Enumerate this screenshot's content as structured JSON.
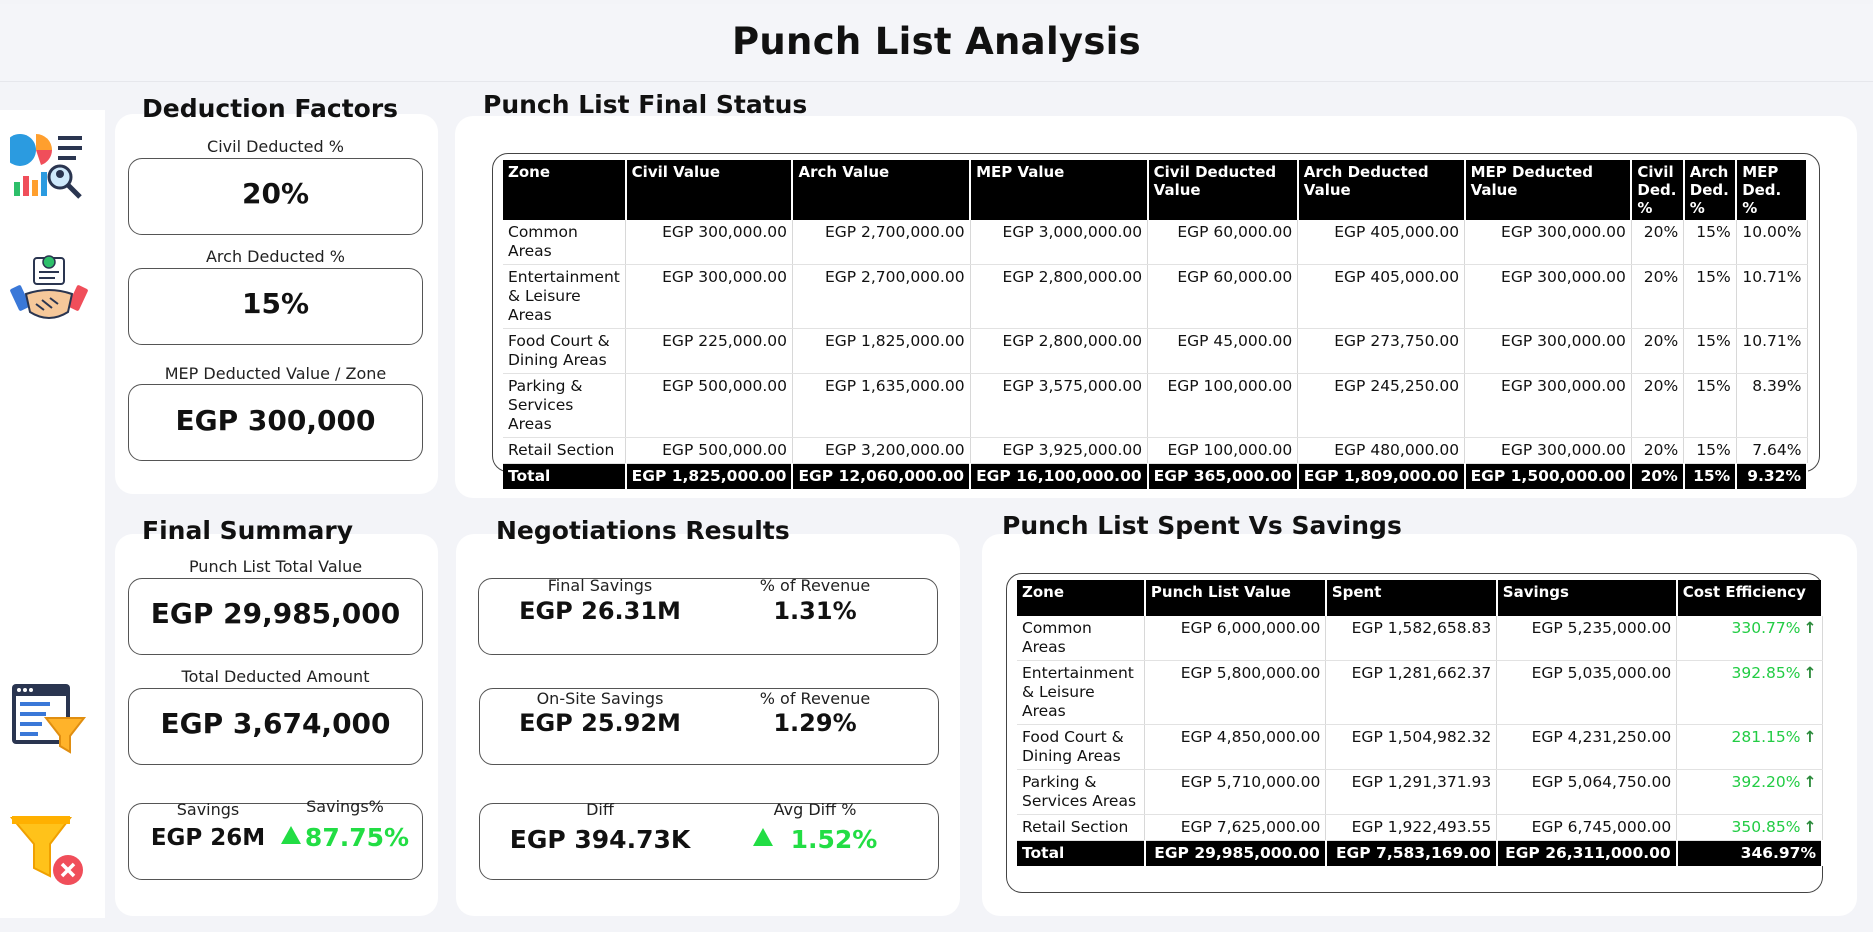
{
  "page_title": "Punch List Analysis",
  "sidebar": {
    "icons": [
      "analytics-icon",
      "handshake-icon",
      "filter-list-icon",
      "filter-clear-icon"
    ]
  },
  "deduction_factors": {
    "title": "Deduction Factors",
    "civil": {
      "label": "Civil Deducted %",
      "value": "20%"
    },
    "arch": {
      "label": "Arch Deducted %",
      "value": "15%"
    },
    "mep": {
      "label": "MEP Deducted Value / Zone",
      "value": "EGP 300,000"
    }
  },
  "final_status": {
    "title": "Punch List Final Status",
    "headers": [
      "Zone",
      "Civil Value",
      "Arch Value",
      "MEP Value",
      "Civil Deducted Value",
      "Arch Deducted Value",
      "MEP Deducted Value",
      "Civil Ded. %",
      "Arch Ded. %",
      "MEP Ded. %"
    ],
    "rows": [
      [
        "Common Areas",
        "EGP 300,000.00",
        "EGP 2,700,000.00",
        "EGP 3,000,000.00",
        "EGP 60,000.00",
        "EGP 405,000.00",
        "EGP 300,000.00",
        "20%",
        "15%",
        "10.00%"
      ],
      [
        "Entertainment & Leisure Areas",
        "EGP 300,000.00",
        "EGP 2,700,000.00",
        "EGP 2,800,000.00",
        "EGP 60,000.00",
        "EGP 405,000.00",
        "EGP 300,000.00",
        "20%",
        "15%",
        "10.71%"
      ],
      [
        "Food Court & Dining Areas",
        "EGP 225,000.00",
        "EGP 1,825,000.00",
        "EGP 2,800,000.00",
        "EGP 45,000.00",
        "EGP 273,750.00",
        "EGP 300,000.00",
        "20%",
        "15%",
        "10.71%"
      ],
      [
        "Parking & Services Areas",
        "EGP 500,000.00",
        "EGP 1,635,000.00",
        "EGP 3,575,000.00",
        "EGP 100,000.00",
        "EGP 245,250.00",
        "EGP 300,000.00",
        "20%",
        "15%",
        "8.39%"
      ],
      [
        "Retail Section",
        "EGP 500,000.00",
        "EGP 3,200,000.00",
        "EGP 3,925,000.00",
        "EGP 100,000.00",
        "EGP 480,000.00",
        "EGP 300,000.00",
        "20%",
        "15%",
        "7.64%"
      ]
    ],
    "total": [
      "Total",
      "EGP 1,825,000.00",
      "EGP 12,060,000.00",
      "EGP 16,100,000.00",
      "EGP 365,000.00",
      "EGP 1,809,000.00",
      "EGP 1,500,000.00",
      "20%",
      "15%",
      "9.32%"
    ]
  },
  "final_summary": {
    "title": "Final Summary",
    "total_value": {
      "label": "Punch List Total Value",
      "value": "EGP 29,985,000"
    },
    "deducted": {
      "label": "Total Deducted Amount",
      "value": "EGP 3,674,000"
    },
    "savings": {
      "label": "Savings",
      "value": "EGP 26M"
    },
    "savings_pct": {
      "label": "Savings%",
      "value": "87.75%"
    }
  },
  "negotiations": {
    "title": "Negotiations Results",
    "final_savings": {
      "label": "Final Savings",
      "value": "EGP 26.31M"
    },
    "final_pct": {
      "label": "% of Revenue",
      "value": "1.31%"
    },
    "onsite_savings": {
      "label": "On-Site Savings",
      "value": "EGP 25.92M"
    },
    "onsite_pct": {
      "label": "% of Revenue",
      "value": "1.29%"
    },
    "diff": {
      "label": "Diff",
      "value": "EGP 394.73K"
    },
    "avg_diff": {
      "label": "Avg Diff %",
      "value": "1.52%"
    }
  },
  "spent_savings": {
    "title": "Punch List Spent Vs Savings",
    "headers": [
      "Zone",
      "Punch List Value",
      "Spent",
      "Savings",
      "Cost Efficiency"
    ],
    "rows": [
      [
        "Common Areas",
        "EGP 6,000,000.00",
        "EGP 1,582,658.83",
        "EGP 5,235,000.00",
        "330.77%"
      ],
      [
        "Entertainment & Leisure Areas",
        "EGP 5,800,000.00",
        "EGP 1,281,662.37",
        "EGP 5,035,000.00",
        "392.85%"
      ],
      [
        "Food Court & Dining Areas",
        "EGP 4,850,000.00",
        "EGP 1,504,982.32",
        "EGP 4,231,250.00",
        "281.15%"
      ],
      [
        "Parking & Services Areas",
        "EGP 5,710,000.00",
        "EGP 1,291,371.93",
        "EGP 5,064,750.00",
        "392.20%"
      ],
      [
        "Retail Section",
        "EGP 7,625,000.00",
        "EGP 1,922,493.55",
        "EGP 6,745,000.00",
        "350.85%"
      ]
    ],
    "total": [
      "Total",
      "EGP 29,985,000.00",
      "EGP 7,583,169.00",
      "EGP 26,311,000.00",
      "346.97%"
    ]
  },
  "colors": {
    "positive": "#22dd44",
    "header_bg": "#000000",
    "panel_bg": "#ffffff",
    "page_bg": "#f3f4f8"
  }
}
